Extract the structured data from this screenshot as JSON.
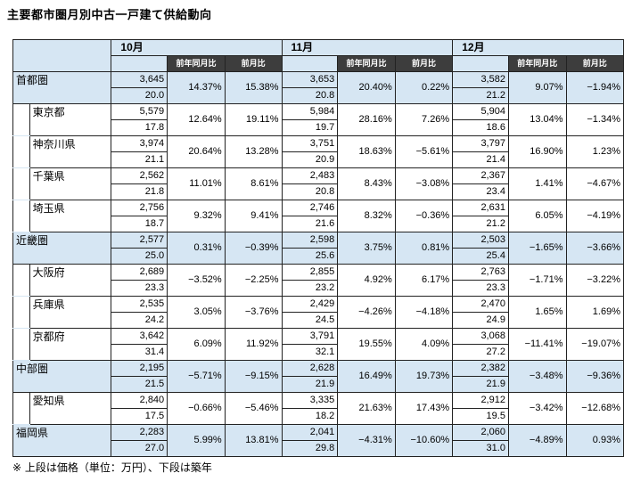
{
  "title": "主要都市圏月別中古一戸建て供給動向",
  "note": "※ 上段は価格（単位：万円）、下段は築年",
  "months": [
    "10月",
    "11月",
    "12月"
  ],
  "sub_headers": {
    "yoy": "前年同月比",
    "mom": "前月比"
  },
  "rows": [
    {
      "name": "首都圏",
      "level": 0,
      "region": true,
      "m": [
        {
          "price": "3,645",
          "age": "20.0",
          "yoy": "14.37%",
          "mom": "15.38%"
        },
        {
          "price": "3,653",
          "age": "20.8",
          "yoy": "20.40%",
          "mom": "0.22%"
        },
        {
          "price": "3,582",
          "age": "21.2",
          "yoy": "9.07%",
          "mom": "−1.94%"
        }
      ]
    },
    {
      "name": "東京都",
      "level": 1,
      "region": false,
      "m": [
        {
          "price": "5,579",
          "age": "17.8",
          "yoy": "12.64%",
          "mom": "19.11%"
        },
        {
          "price": "5,984",
          "age": "19.7",
          "yoy": "28.16%",
          "mom": "7.26%"
        },
        {
          "price": "5,904",
          "age": "18.6",
          "yoy": "13.04%",
          "mom": "−1.34%"
        }
      ]
    },
    {
      "name": "神奈川県",
      "level": 1,
      "region": false,
      "m": [
        {
          "price": "3,974",
          "age": "21.1",
          "yoy": "20.64%",
          "mom": "13.28%"
        },
        {
          "price": "3,751",
          "age": "20.9",
          "yoy": "18.63%",
          "mom": "−5.61%"
        },
        {
          "price": "3,797",
          "age": "21.4",
          "yoy": "16.90%",
          "mom": "1.23%"
        }
      ]
    },
    {
      "name": "千葉県",
      "level": 1,
      "region": false,
      "m": [
        {
          "price": "2,562",
          "age": "21.8",
          "yoy": "11.01%",
          "mom": "8.61%"
        },
        {
          "price": "2,483",
          "age": "20.8",
          "yoy": "8.43%",
          "mom": "−3.08%"
        },
        {
          "price": "2,367",
          "age": "23.4",
          "yoy": "1.41%",
          "mom": "−4.67%"
        }
      ]
    },
    {
      "name": "埼玉県",
      "level": 1,
      "region": false,
      "m": [
        {
          "price": "2,756",
          "age": "18.7",
          "yoy": "9.32%",
          "mom": "9.41%"
        },
        {
          "price": "2,746",
          "age": "21.6",
          "yoy": "8.32%",
          "mom": "−0.36%"
        },
        {
          "price": "2,631",
          "age": "21.2",
          "yoy": "6.05%",
          "mom": "−4.19%"
        }
      ]
    },
    {
      "name": "近畿圏",
      "level": 0,
      "region": true,
      "m": [
        {
          "price": "2,577",
          "age": "25.0",
          "yoy": "0.31%",
          "mom": "−0.39%"
        },
        {
          "price": "2,598",
          "age": "25.6",
          "yoy": "3.75%",
          "mom": "0.81%"
        },
        {
          "price": "2,503",
          "age": "25.4",
          "yoy": "−1.65%",
          "mom": "−3.66%"
        }
      ]
    },
    {
      "name": "大阪府",
      "level": 1,
      "region": false,
      "m": [
        {
          "price": "2,689",
          "age": "23.3",
          "yoy": "−3.52%",
          "mom": "−2.25%"
        },
        {
          "price": "2,855",
          "age": "23.2",
          "yoy": "4.92%",
          "mom": "6.17%"
        },
        {
          "price": "2,763",
          "age": "23.3",
          "yoy": "−1.71%",
          "mom": "−3.22%"
        }
      ]
    },
    {
      "name": "兵庫県",
      "level": 1,
      "region": false,
      "m": [
        {
          "price": "2,535",
          "age": "24.2",
          "yoy": "3.05%",
          "mom": "−3.76%"
        },
        {
          "price": "2,429",
          "age": "24.5",
          "yoy": "−4.26%",
          "mom": "−4.18%"
        },
        {
          "price": "2,470",
          "age": "24.9",
          "yoy": "1.65%",
          "mom": "1.69%"
        }
      ]
    },
    {
      "name": "京都府",
      "level": 1,
      "region": false,
      "m": [
        {
          "price": "3,642",
          "age": "31.4",
          "yoy": "6.09%",
          "mom": "11.92%"
        },
        {
          "price": "3,791",
          "age": "32.1",
          "yoy": "19.55%",
          "mom": "4.09%"
        },
        {
          "price": "3,068",
          "age": "27.2",
          "yoy": "−11.41%",
          "mom": "−19.07%"
        }
      ]
    },
    {
      "name": "中部圏",
      "level": 0,
      "region": true,
      "m": [
        {
          "price": "2,195",
          "age": "21.5",
          "yoy": "−5.71%",
          "mom": "−9.15%"
        },
        {
          "price": "2,628",
          "age": "21.9",
          "yoy": "16.49%",
          "mom": "19.73%"
        },
        {
          "price": "2,382",
          "age": "21.9",
          "yoy": "−3.48%",
          "mom": "−9.36%"
        }
      ]
    },
    {
      "name": "愛知県",
      "level": 1,
      "region": false,
      "m": [
        {
          "price": "2,840",
          "age": "17.5",
          "yoy": "−0.66%",
          "mom": "−5.46%"
        },
        {
          "price": "3,335",
          "age": "18.2",
          "yoy": "21.63%",
          "mom": "17.43%"
        },
        {
          "price": "2,912",
          "age": "19.5",
          "yoy": "−3.42%",
          "mom": "−12.68%"
        }
      ]
    },
    {
      "name": "福岡県",
      "level": 0,
      "region": true,
      "m": [
        {
          "price": "2,283",
          "age": "27.0",
          "yoy": "5.99%",
          "mom": "13.81%"
        },
        {
          "price": "2,041",
          "age": "29.8",
          "yoy": "−4.31%",
          "mom": "−10.60%"
        },
        {
          "price": "2,060",
          "age": "31.0",
          "yoy": "−4.89%",
          "mom": "0.93%"
        }
      ]
    }
  ]
}
